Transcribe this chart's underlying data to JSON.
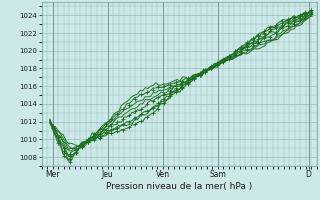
{
  "xlabel": "Pression niveau de la mer( hPa )",
  "bg_color": "#cce8e8",
  "plot_bg_color": "#cce8e8",
  "grid_color": "#99bbbb",
  "line_color": "#1a6e1a",
  "ylim": [
    1007,
    1025.5
  ],
  "yticks": [
    1008,
    1010,
    1012,
    1014,
    1016,
    1018,
    1020,
    1022,
    1024
  ],
  "xlim": [
    0,
    5.0
  ],
  "xtick_labels": [
    "Mer",
    "Jeu",
    "Ven",
    "Sam",
    "D"
  ],
  "xtick_positions": [
    0.2,
    1.2,
    2.2,
    3.2,
    4.85
  ],
  "vlines": [
    0.2,
    1.2,
    2.2,
    3.2,
    4.85
  ]
}
